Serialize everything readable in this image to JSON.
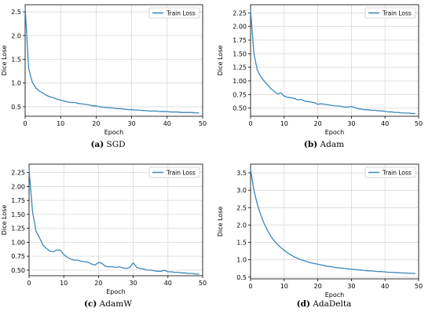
{
  "figure": {
    "captions": [
      {
        "tag": "(a)",
        "name": "SGD"
      },
      {
        "tag": "(b)",
        "name": "Adam"
      },
      {
        "tag": "(c)",
        "name": "AdamW"
      },
      {
        "tag": "(d)",
        "name": "AdaDelta"
      }
    ]
  },
  "colors": {
    "line": "#3a87bd",
    "grid": "#d9d9d9",
    "axis": "#000000"
  },
  "chart_data": [
    {
      "type": "line",
      "xlabel": "Epoch",
      "ylabel": "Dice Lose",
      "xlim": [
        0,
        50
      ],
      "ylim": [
        0.3,
        2.65
      ],
      "xticks": [
        0,
        10,
        20,
        30,
        40,
        50
      ],
      "yticks": [
        0.5,
        1.0,
        1.5,
        2.0,
        2.5
      ],
      "ytick_labels": [
        "0.5",
        "1.0",
        "1.5",
        "2.0",
        "2.5"
      ],
      "grid": true,
      "legend_position": "top-right",
      "series": [
        {
          "name": "Train Loss",
          "x": [
            0,
            1,
            2,
            3,
            4,
            5,
            6,
            7,
            8,
            9,
            10,
            11,
            12,
            13,
            14,
            15,
            16,
            17,
            18,
            19,
            20,
            21,
            22,
            23,
            24,
            25,
            26,
            27,
            28,
            29,
            30,
            31,
            32,
            33,
            34,
            35,
            36,
            37,
            38,
            39,
            40,
            41,
            42,
            43,
            44,
            45,
            46,
            47,
            48,
            49
          ],
          "values": [
            2.6,
            1.3,
            1.02,
            0.9,
            0.83,
            0.79,
            0.74,
            0.71,
            0.69,
            0.66,
            0.64,
            0.62,
            0.6,
            0.59,
            0.59,
            0.57,
            0.56,
            0.55,
            0.54,
            0.52,
            0.52,
            0.5,
            0.49,
            0.48,
            0.48,
            0.47,
            0.46,
            0.46,
            0.45,
            0.44,
            0.44,
            0.43,
            0.43,
            0.42,
            0.42,
            0.41,
            0.41,
            0.41,
            0.4,
            0.4,
            0.4,
            0.39,
            0.39,
            0.39,
            0.38,
            0.38,
            0.38,
            0.38,
            0.37,
            0.37
          ]
        }
      ]
    },
    {
      "type": "line",
      "xlabel": "Epoch",
      "ylabel": "Dice Lose",
      "xlim": [
        0,
        50
      ],
      "ylim": [
        0.35,
        2.4
      ],
      "xticks": [
        0,
        10,
        20,
        30,
        40,
        50
      ],
      "yticks": [
        0.5,
        0.75,
        1.0,
        1.25,
        1.5,
        1.75,
        2.0,
        2.25
      ],
      "ytick_labels": [
        "0.50",
        "0.75",
        "1.00",
        "1.25",
        "1.50",
        "1.75",
        "2.00",
        "2.25"
      ],
      "grid": true,
      "legend_position": "top-right",
      "series": [
        {
          "name": "Train Loss",
          "x": [
            0,
            1,
            2,
            3,
            4,
            5,
            6,
            7,
            8,
            9,
            10,
            11,
            12,
            13,
            14,
            15,
            16,
            17,
            18,
            19,
            20,
            21,
            22,
            23,
            24,
            25,
            26,
            27,
            28,
            29,
            30,
            31,
            32,
            33,
            34,
            35,
            36,
            37,
            38,
            39,
            40,
            41,
            42,
            43,
            44,
            45,
            46,
            47,
            48,
            49
          ],
          "values": [
            2.3,
            1.5,
            1.2,
            1.08,
            1.0,
            0.93,
            0.86,
            0.81,
            0.76,
            0.78,
            0.72,
            0.7,
            0.69,
            0.68,
            0.65,
            0.66,
            0.63,
            0.62,
            0.61,
            0.6,
            0.57,
            0.58,
            0.57,
            0.56,
            0.55,
            0.54,
            0.54,
            0.53,
            0.52,
            0.52,
            0.53,
            0.51,
            0.49,
            0.48,
            0.47,
            0.47,
            0.46,
            0.46,
            0.45,
            0.45,
            0.44,
            0.43,
            0.43,
            0.42,
            0.42,
            0.41,
            0.41,
            0.41,
            0.4,
            0.4
          ]
        }
      ]
    },
    {
      "type": "line",
      "xlabel": "Epoch",
      "ylabel": "Dice Lose",
      "xlim": [
        0,
        50
      ],
      "ylim": [
        0.4,
        2.4
      ],
      "xticks": [
        0,
        10,
        20,
        30,
        40,
        50
      ],
      "yticks": [
        0.5,
        0.75,
        1.0,
        1.25,
        1.5,
        1.75,
        2.0,
        2.25
      ],
      "ytick_labels": [
        "0.50",
        "0.75",
        "1.00",
        "1.25",
        "1.50",
        "1.75",
        "2.00",
        "2.25"
      ],
      "grid": true,
      "legend_position": "top-right",
      "series": [
        {
          "name": "Train Loss",
          "x": [
            0,
            1,
            2,
            3,
            4,
            5,
            6,
            7,
            8,
            9,
            10,
            11,
            12,
            13,
            14,
            15,
            16,
            17,
            18,
            19,
            20,
            21,
            22,
            23,
            24,
            25,
            26,
            27,
            28,
            29,
            30,
            31,
            32,
            33,
            34,
            35,
            36,
            37,
            38,
            39,
            40,
            41,
            42,
            43,
            44,
            45,
            46,
            47,
            48,
            49
          ],
          "values": [
            2.3,
            1.55,
            1.2,
            1.08,
            0.95,
            0.89,
            0.84,
            0.83,
            0.86,
            0.86,
            0.78,
            0.73,
            0.7,
            0.68,
            0.68,
            0.66,
            0.65,
            0.64,
            0.61,
            0.59,
            0.64,
            0.62,
            0.57,
            0.56,
            0.56,
            0.55,
            0.56,
            0.54,
            0.53,
            0.55,
            0.63,
            0.55,
            0.53,
            0.52,
            0.5,
            0.5,
            0.49,
            0.48,
            0.48,
            0.5,
            0.47,
            0.47,
            0.46,
            0.46,
            0.45,
            0.45,
            0.44,
            0.44,
            0.43,
            0.43
          ]
        }
      ]
    },
    {
      "type": "line",
      "xlabel": "Epoch",
      "ylabel": "Dice Lose",
      "xlim": [
        0,
        50
      ],
      "ylim": [
        0.45,
        3.75
      ],
      "xticks": [
        0,
        10,
        20,
        30,
        40,
        50
      ],
      "yticks": [
        0.5,
        1.0,
        1.5,
        2.0,
        2.5,
        3.0,
        3.5
      ],
      "ytick_labels": [
        "0.5",
        "1.0",
        "1.5",
        "2.0",
        "2.5",
        "3.0",
        "3.5"
      ],
      "grid": true,
      "legend_position": "top-right",
      "series": [
        {
          "name": "Train Loss",
          "x": [
            0,
            1,
            2,
            3,
            4,
            5,
            6,
            7,
            8,
            9,
            10,
            11,
            12,
            13,
            14,
            15,
            16,
            17,
            18,
            19,
            20,
            21,
            22,
            23,
            24,
            25,
            26,
            27,
            28,
            29,
            30,
            31,
            32,
            33,
            34,
            35,
            36,
            37,
            38,
            39,
            40,
            41,
            42,
            43,
            44,
            45,
            46,
            47,
            48,
            49
          ],
          "values": [
            3.6,
            3.0,
            2.6,
            2.3,
            2.05,
            1.85,
            1.68,
            1.55,
            1.44,
            1.35,
            1.27,
            1.2,
            1.14,
            1.08,
            1.04,
            1.0,
            0.97,
            0.94,
            0.91,
            0.89,
            0.87,
            0.85,
            0.83,
            0.81,
            0.8,
            0.78,
            0.77,
            0.76,
            0.75,
            0.74,
            0.73,
            0.72,
            0.71,
            0.7,
            0.69,
            0.68,
            0.68,
            0.67,
            0.66,
            0.66,
            0.65,
            0.64,
            0.64,
            0.63,
            0.63,
            0.62,
            0.62,
            0.61,
            0.61,
            0.6
          ]
        }
      ]
    }
  ]
}
